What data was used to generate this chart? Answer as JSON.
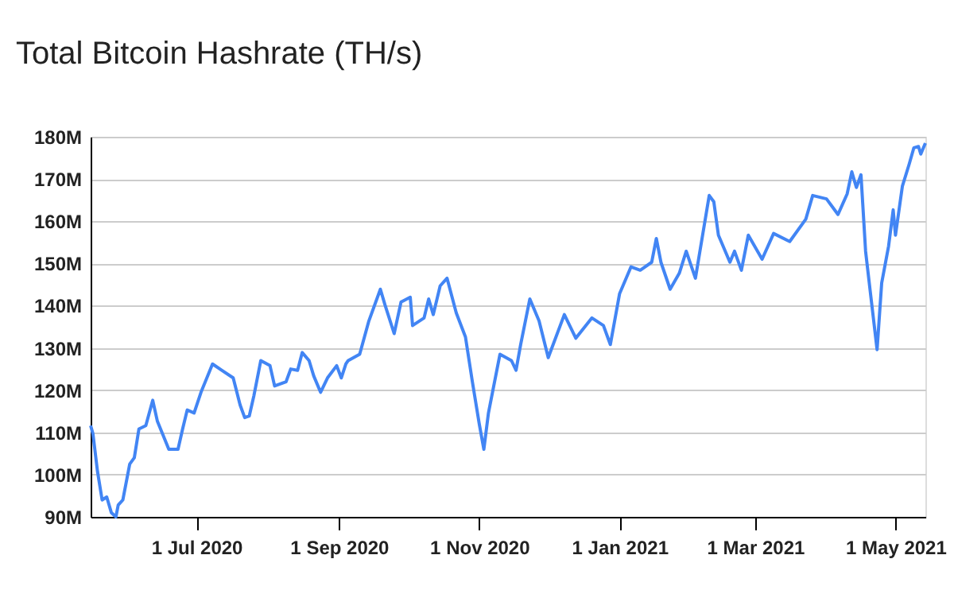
{
  "chart_data": {
    "type": "line",
    "title": "Total Bitcoin Hashrate (TH/s)",
    "x": [
      "2020-05-16",
      "2020-05-17",
      "2020-05-19",
      "2020-05-21",
      "2020-05-23",
      "2020-05-25",
      "2020-05-27",
      "2020-05-28",
      "2020-05-30",
      "2020-06-02",
      "2020-06-04",
      "2020-06-06",
      "2020-06-09",
      "2020-06-12",
      "2020-06-14",
      "2020-06-19",
      "2020-06-23",
      "2020-06-25",
      "2020-06-27",
      "2020-06-30",
      "2020-07-03",
      "2020-07-08",
      "2020-07-12",
      "2020-07-17",
      "2020-07-20",
      "2020-07-22",
      "2020-07-24",
      "2020-07-26",
      "2020-07-29",
      "2020-08-02",
      "2020-08-04",
      "2020-08-09",
      "2020-08-11",
      "2020-08-14",
      "2020-08-16",
      "2020-08-19",
      "2020-08-21",
      "2020-08-24",
      "2020-08-27",
      "2020-08-31",
      "2020-09-02",
      "2020-09-04",
      "2020-09-05",
      "2020-09-10",
      "2020-09-14",
      "2020-09-19",
      "2020-09-21",
      "2020-09-25",
      "2020-09-28",
      "2020-10-02",
      "2020-10-03",
      "2020-10-08",
      "2020-10-10",
      "2020-10-12",
      "2020-10-15",
      "2020-10-18",
      "2020-10-22",
      "2020-10-26",
      "2020-10-29",
      "2020-11-01",
      "2020-11-03",
      "2020-11-05",
      "2020-11-10",
      "2020-11-15",
      "2020-11-17",
      "2020-11-19",
      "2020-11-23",
      "2020-11-27",
      "2020-12-01",
      "2020-12-08",
      "2020-12-13",
      "2020-12-20",
      "2020-12-25",
      "2020-12-28",
      "2021-01-01",
      "2021-01-06",
      "2021-01-10",
      "2021-01-15",
      "2021-01-17",
      "2021-01-19",
      "2021-01-23",
      "2021-01-27",
      "2021-01-30",
      "2021-02-03",
      "2021-02-09",
      "2021-02-11",
      "2021-02-13",
      "2021-02-18",
      "2021-02-20",
      "2021-02-23",
      "2021-02-26",
      "2021-03-04",
      "2021-03-09",
      "2021-03-16",
      "2021-03-23",
      "2021-03-26",
      "2021-04-01",
      "2021-04-06",
      "2021-04-10",
      "2021-04-12",
      "2021-04-14",
      "2021-04-16",
      "2021-04-18",
      "2021-04-20",
      "2021-04-23",
      "2021-04-25",
      "2021-04-28",
      "2021-04-30",
      "2021-05-01",
      "2021-05-04",
      "2021-05-07",
      "2021-05-09",
      "2021-05-11",
      "2021-05-12",
      "2021-05-14"
    ],
    "series": [
      {
        "color": "#4285f4",
        "values": [
          111.6,
          109.7,
          100.7,
          94,
          94.7,
          91,
          90,
          92.8,
          94,
          102.5,
          104,
          110.8,
          111.6,
          117.6,
          112.7,
          106,
          106,
          110.8,
          115.3,
          114.6,
          119.5,
          126.2,
          124.7,
          122.9,
          116.5,
          113.5,
          113.9,
          118.7,
          127,
          125.8,
          121,
          122,
          125,
          124.7,
          128.9,
          127,
          123.4,
          119.5,
          122.9,
          125.8,
          122.9,
          126.2,
          127,
          128.5,
          136.4,
          143.9,
          140.2,
          133.4,
          140.9,
          142,
          135.3,
          137.1,
          141.6,
          137.9,
          144.7,
          146.5,
          138.3,
          132.6,
          122,
          112,
          106,
          114.6,
          128.5,
          127,
          124.7,
          130.8,
          141.6,
          136.4,
          127.7,
          137.9,
          132.3,
          137.1,
          135.3,
          130.8,
          142.8,
          149.2,
          148.4,
          150.3,
          155.9,
          150.3,
          143.9,
          147.7,
          152.9,
          146.5,
          166.1,
          164.6,
          156.7,
          150.3,
          152.9,
          148.4,
          156.7,
          151,
          157.1,
          155.2,
          160.5,
          166.1,
          165.3,
          161.6,
          166.5,
          171.7,
          168,
          171,
          152.9,
          143.5,
          129.6,
          145.4,
          154.1,
          162.7,
          156.7,
          168.3,
          173.6,
          177.4,
          177.7,
          175.9,
          178.5
        ]
      }
    ],
    "xlim": [
      "2020-05-16",
      "2021-05-14"
    ],
    "xticks": [
      {
        "value": "2020-07-01",
        "label": "1 Jul 2020"
      },
      {
        "value": "2020-09-01",
        "label": "1 Sep 2020"
      },
      {
        "value": "2020-11-01",
        "label": "1 Nov 2020"
      },
      {
        "value": "2021-01-01",
        "label": "1 Jan 2021"
      },
      {
        "value": "2021-03-01",
        "label": "1 Mar 2021"
      },
      {
        "value": "2021-05-01",
        "label": "1 May 2021"
      }
    ],
    "ylim": [
      90,
      180
    ],
    "yticks": [
      {
        "value": 90,
        "label": "90M"
      },
      {
        "value": 100,
        "label": "100M"
      },
      {
        "value": 110,
        "label": "110M"
      },
      {
        "value": 120,
        "label": "120M"
      },
      {
        "value": 130,
        "label": "130M"
      },
      {
        "value": 140,
        "label": "140M"
      },
      {
        "value": 150,
        "label": "150M"
      },
      {
        "value": 160,
        "label": "160M"
      },
      {
        "value": 170,
        "label": "170M"
      },
      {
        "value": 180,
        "label": "180M"
      }
    ],
    "grid": "y",
    "marker": "none",
    "line_style": "solid",
    "legend": false
  }
}
